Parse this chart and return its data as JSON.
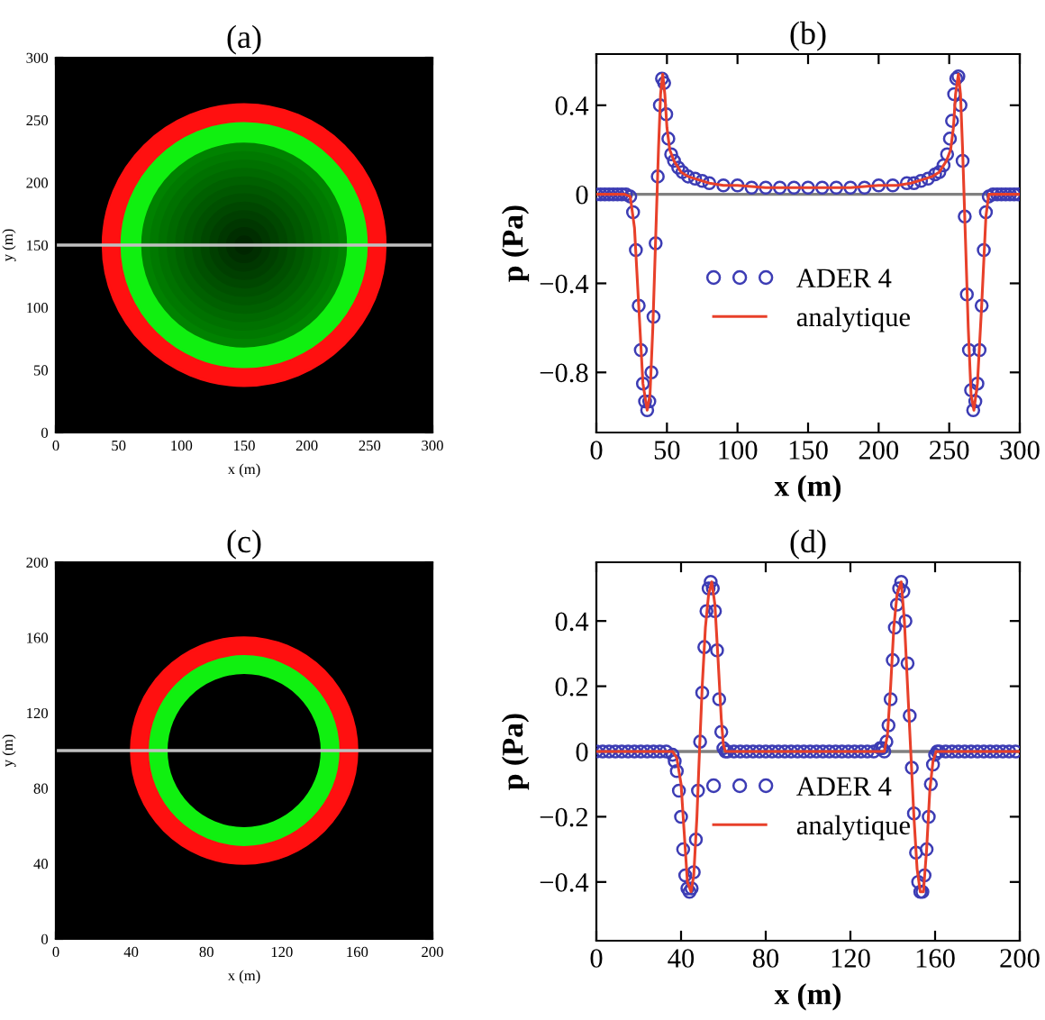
{
  "chart_data": [
    {
      "type": "scatter",
      "title": "(a)",
      "xlabel": "x (m)",
      "ylabel": "y (m)",
      "xlim": [
        0,
        300
      ],
      "ylim": [
        0,
        300
      ],
      "xticks": [
        0,
        50,
        100,
        150,
        200,
        250,
        300
      ],
      "yticks": [
        0,
        50,
        100,
        150,
        200,
        250,
        300
      ],
      "ref_lines": [
        {
          "axis": "y",
          "value": 150,
          "color": "#c0c0c0"
        }
      ]
    },
    {
      "type": "line",
      "title": "(b)",
      "xlabel": "x (m)",
      "ylabel": "p (Pa)",
      "xlim": [
        0,
        300
      ],
      "ylim": [
        -1.07,
        0.63
      ],
      "xticks": [
        0,
        50,
        100,
        150,
        200,
        250,
        300
      ],
      "yticks": [
        {
          "value": -0.8,
          "label": "−0.8"
        },
        {
          "value": -0.4,
          "label": "−0.4"
        },
        0,
        0.4
      ],
      "legend": "bottom",
      "ref_lines": [
        {
          "axis": "y",
          "value": 0,
          "color": "#808080"
        }
      ],
      "series": [
        {
          "name": "ADER 4",
          "type": "scatter",
          "marker": "circle",
          "color": "#3c3cb4",
          "x": [
            0,
            3,
            6,
            9,
            12,
            15,
            18,
            21,
            24,
            26,
            28,
            30,
            31.5,
            33,
            34.5,
            36,
            37.5,
            39,
            40.5,
            42,
            43.5,
            45,
            46.5,
            48,
            49.5,
            51,
            53,
            55,
            58,
            61,
            65,
            70,
            75,
            80,
            90,
            100,
            110,
            120,
            130,
            140,
            150,
            160,
            170,
            180,
            190,
            200,
            210,
            220,
            225,
            230,
            235,
            240,
            243,
            246,
            248.5,
            250.5,
            252,
            253.5,
            255,
            256.5,
            258,
            259.5,
            261,
            262.5,
            264,
            265.5,
            267,
            268.5,
            270,
            271.5,
            273,
            274.5,
            276,
            278,
            281,
            284,
            287,
            290,
            293,
            296,
            299
          ],
          "values": [
            0,
            0,
            0,
            0,
            0,
            0,
            0,
            0,
            -0.01,
            -0.08,
            -0.25,
            -0.5,
            -0.7,
            -0.85,
            -0.93,
            -0.97,
            -0.93,
            -0.8,
            -0.55,
            -0.22,
            0.08,
            0.4,
            0.52,
            0.5,
            0.36,
            0.25,
            0.18,
            0.15,
            0.12,
            0.1,
            0.08,
            0.07,
            0.06,
            0.05,
            0.04,
            0.04,
            0.03,
            0.03,
            0.03,
            0.03,
            0.03,
            0.03,
            0.03,
            0.03,
            0.03,
            0.04,
            0.04,
            0.05,
            0.05,
            0.06,
            0.07,
            0.09,
            0.1,
            0.13,
            0.18,
            0.25,
            0.33,
            0.45,
            0.52,
            0.53,
            0.4,
            0.15,
            -0.1,
            -0.45,
            -0.7,
            -0.88,
            -0.97,
            -0.93,
            -0.85,
            -0.7,
            -0.5,
            -0.25,
            -0.08,
            -0.01,
            0,
            0,
            0,
            0,
            0,
            0,
            0
          ]
        },
        {
          "name": "analytique",
          "type": "line",
          "line_style": "solid",
          "color": "#e8402a",
          "x": [
            0,
            20,
            24,
            27,
            30,
            33,
            36,
            38,
            40,
            42,
            43,
            44,
            45.5,
            47,
            48.5,
            50,
            52,
            55,
            60,
            65,
            70,
            80,
            90,
            100,
            120,
            150,
            180,
            200,
            213,
            223,
            233,
            238,
            243,
            248,
            251,
            253,
            254.5,
            256.5,
            258,
            259.5,
            260.5,
            261.5,
            263.5,
            265.5,
            267.5,
            270,
            273,
            276,
            278,
            300
          ],
          "values": [
            0,
            0,
            -0.01,
            -0.15,
            -0.5,
            -0.85,
            -0.97,
            -0.9,
            -0.6,
            -0.2,
            0,
            0.2,
            0.45,
            0.54,
            0.45,
            0.3,
            0.2,
            0.15,
            0.1,
            0.08,
            0.07,
            0.05,
            0.04,
            0.04,
            0.03,
            0.03,
            0.03,
            0.04,
            0.04,
            0.05,
            0.07,
            0.08,
            0.1,
            0.15,
            0.2,
            0.3,
            0.45,
            0.54,
            0.45,
            0.2,
            0,
            -0.2,
            -0.6,
            -0.9,
            -0.97,
            -0.85,
            -0.5,
            -0.1,
            0,
            0
          ]
        }
      ]
    },
    {
      "type": "scatter",
      "title": "(c)",
      "xlabel": "x (m)",
      "ylabel": "y (m)",
      "xlim": [
        0,
        200
      ],
      "ylim": [
        0,
        200
      ],
      "xticks": [
        0,
        40,
        80,
        120,
        160,
        200
      ],
      "yticks": [
        0,
        40,
        80,
        120,
        160,
        200
      ],
      "ref_lines": [
        {
          "axis": "y",
          "value": 100,
          "color": "#c0c0c0"
        }
      ]
    },
    {
      "type": "line",
      "title": "(d)",
      "xlabel": "x (m)",
      "ylabel": "p (Pa)",
      "xlim": [
        0,
        200
      ],
      "ylim": [
        -0.58,
        0.58
      ],
      "xticks": [
        0,
        40,
        80,
        120,
        160,
        200
      ],
      "yticks": [
        {
          "value": -0.4,
          "label": "−0.4"
        },
        {
          "value": -0.2,
          "label": "−0.2"
        },
        0,
        0.2,
        0.4
      ],
      "legend": "bottom",
      "ref_lines": [
        {
          "axis": "y",
          "value": 0,
          "color": "#808080"
        }
      ],
      "series": [
        {
          "name": "ADER 4",
          "type": "scatter",
          "marker": "circle",
          "color": "#3c3cb4",
          "x": [
            0,
            3,
            6,
            9,
            12,
            15,
            18,
            21,
            24,
            27,
            30,
            33,
            36,
            37,
            38,
            39,
            40,
            41,
            42,
            43,
            44,
            45,
            46,
            47,
            48,
            49,
            50,
            51,
            52,
            53,
            54,
            55,
            56,
            57,
            58,
            59,
            60,
            61,
            62,
            65,
            68,
            71,
            74,
            77,
            80,
            83,
            86,
            89,
            92,
            95,
            98,
            101,
            104,
            107,
            110,
            113,
            116,
            119,
            122,
            125,
            128,
            131,
            134,
            135,
            136,
            137,
            138,
            139,
            140,
            141,
            142,
            143,
            144,
            145,
            146,
            147,
            148,
            149,
            150,
            151,
            152,
            153,
            154,
            155,
            156,
            157,
            158,
            159,
            160,
            161,
            162,
            165,
            168,
            171,
            174,
            177,
            180,
            183,
            186,
            189,
            192,
            195,
            198
          ],
          "values": [
            0,
            0,
            0,
            0,
            0,
            0,
            0,
            0,
            0,
            0,
            0,
            0,
            -0.01,
            -0.03,
            -0.06,
            -0.12,
            -0.2,
            -0.3,
            -0.38,
            -0.42,
            -0.43,
            -0.42,
            -0.37,
            -0.27,
            -0.12,
            0.03,
            0.18,
            0.32,
            0.43,
            0.5,
            0.52,
            0.5,
            0.43,
            0.31,
            0.16,
            0.06,
            0.01,
            0,
            0,
            0,
            0,
            0,
            0,
            0,
            0,
            0,
            0,
            0,
            0,
            0,
            0,
            0,
            0,
            0,
            0,
            0,
            0,
            0,
            0,
            0,
            0,
            0,
            0.01,
            0.01,
            0,
            0.03,
            0.08,
            0.16,
            0.28,
            0.38,
            0.45,
            0.5,
            0.52,
            0.49,
            0.4,
            0.27,
            0.11,
            -0.05,
            -0.19,
            -0.31,
            -0.4,
            -0.43,
            -0.43,
            -0.38,
            -0.3,
            -0.2,
            -0.1,
            -0.04,
            -0.01,
            0,
            0,
            0,
            0,
            0,
            0,
            0,
            0,
            0,
            0,
            0,
            0,
            0,
            0
          ]
        },
        {
          "name": "analytique",
          "type": "line",
          "line_style": "solid",
          "color": "#e8402a",
          "x": [
            0,
            36,
            38,
            40,
            41.5,
            43,
            44.7,
            46,
            47.5,
            48.7,
            50,
            51.5,
            53,
            54.5,
            56,
            57.5,
            59,
            60,
            61,
            136,
            137.5,
            139,
            140.5,
            142,
            144,
            145.5,
            147,
            148.5,
            150,
            151.5,
            153,
            154.5,
            156,
            157.5,
            159,
            160.5,
            200
          ],
          "values": [
            0,
            0,
            -0.02,
            -0.1,
            -0.25,
            -0.4,
            -0.43,
            -0.38,
            -0.2,
            0,
            0.2,
            0.38,
            0.48,
            0.52,
            0.45,
            0.28,
            0.1,
            0.02,
            0,
            0,
            0.05,
            0.2,
            0.38,
            0.48,
            0.52,
            0.4,
            0.2,
            0,
            -0.2,
            -0.36,
            -0.43,
            -0.43,
            -0.3,
            -0.12,
            -0.03,
            0,
            0
          ]
        }
      ]
    }
  ]
}
